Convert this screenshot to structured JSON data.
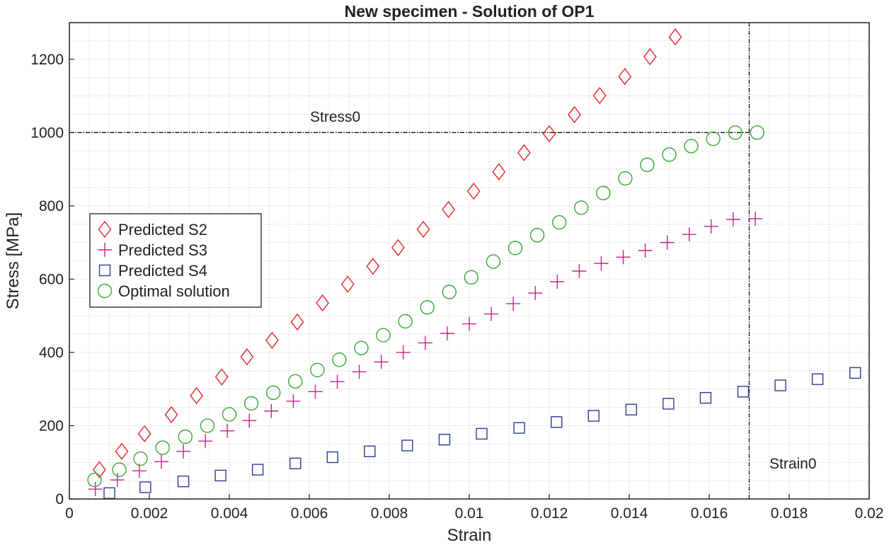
{
  "chart_data": {
    "type": "scatter",
    "title": "New specimen - Solution of OP1",
    "xlabel": "Strain",
    "ylabel": "Stress [MPa]",
    "xlim": [
      0,
      0.02
    ],
    "ylim": [
      0,
      1300
    ],
    "xticks": [
      0,
      0.002,
      0.004,
      0.006,
      0.008,
      0.01,
      0.012,
      0.014,
      0.016,
      0.018,
      0.02
    ],
    "xtick_labels": [
      "0",
      "0.002",
      "0.004",
      "0.006",
      "0.008",
      "0.01",
      "0.012",
      "0.014",
      "0.016",
      "0.018",
      "0.02"
    ],
    "yticks": [
      0,
      200,
      400,
      600,
      800,
      1000,
      1200
    ],
    "ytick_labels": [
      "0",
      "200",
      "400",
      "600",
      "800",
      "1000",
      "1200"
    ],
    "grid": true,
    "legend_position": "middle-left",
    "series": [
      {
        "name": "Predicted S2",
        "marker": "diamond",
        "color": "#e3262b",
        "x": [
          0.00075,
          0.00131,
          0.00188,
          0.00255,
          0.00318,
          0.00381,
          0.00444,
          0.00507,
          0.0057,
          0.00633,
          0.00696,
          0.00759,
          0.00822,
          0.00885,
          0.00948,
          0.01011,
          0.01074,
          0.01137,
          0.012,
          0.01263,
          0.01326,
          0.01389,
          0.01452,
          0.01515
        ],
        "y": [
          80,
          130,
          178,
          230,
          282,
          333,
          388,
          433,
          483,
          535,
          586,
          635,
          686,
          736,
          790,
          840,
          893,
          945,
          997,
          1049,
          1101,
          1153,
          1207,
          1261
        ]
      },
      {
        "name": "Predicted S3",
        "marker": "plus",
        "color": "#c1268c",
        "x": [
          0.00065,
          0.0012,
          0.00175,
          0.0023,
          0.00285,
          0.0034,
          0.00395,
          0.0045,
          0.00505,
          0.0056,
          0.00615,
          0.0067,
          0.00725,
          0.0078,
          0.00835,
          0.0089,
          0.00945,
          0.01,
          0.01055,
          0.0111,
          0.01165,
          0.0122,
          0.01275,
          0.0133,
          0.01385,
          0.0144,
          0.01495,
          0.0155,
          0.01605,
          0.0166,
          0.01715
        ],
        "y": [
          27,
          52,
          77,
          102,
          130,
          158,
          186,
          214,
          240,
          267,
          293,
          320,
          347,
          374,
          400,
          426,
          452,
          478,
          505,
          533,
          562,
          593,
          622,
          643,
          660,
          678,
          700,
          722,
          744,
          763,
          765
        ]
      },
      {
        "name": "Predicted S4",
        "marker": "square",
        "color": "#2e3c95",
        "x": [
          0.001,
          0.0019,
          0.00285,
          0.00378,
          0.00471,
          0.00565,
          0.00658,
          0.00751,
          0.00845,
          0.00938,
          0.01031,
          0.01125,
          0.01218,
          0.01311,
          0.01405,
          0.01498,
          0.01591,
          0.01685,
          0.01778,
          0.01871,
          0.01965
        ],
        "y": [
          16,
          32,
          48,
          64,
          80,
          97,
          114,
          130,
          146,
          162,
          178,
          194,
          210,
          227,
          244,
          260,
          276,
          293,
          310,
          327,
          344
        ]
      },
      {
        "name": "Optimal solution",
        "marker": "circle",
        "color": "#3aa935",
        "x": [
          0.00063,
          0.00125,
          0.00178,
          0.00233,
          0.0029,
          0.00345,
          0.004,
          0.00455,
          0.0051,
          0.00565,
          0.0062,
          0.00675,
          0.0073,
          0.00785,
          0.0084,
          0.00895,
          0.0095,
          0.01005,
          0.0106,
          0.01115,
          0.0117,
          0.01225,
          0.0128,
          0.01335,
          0.0139,
          0.01445,
          0.015,
          0.01555,
          0.0161,
          0.01665,
          0.0172
        ],
        "y": [
          52,
          80,
          110,
          140,
          170,
          200,
          231,
          261,
          290,
          321,
          352,
          380,
          412,
          447,
          485,
          523,
          565,
          605,
          648,
          685,
          720,
          755,
          795,
          835,
          875,
          912,
          940,
          963,
          983,
          1000,
          1000
        ]
      }
    ],
    "reference_lines": [
      {
        "orientation": "horizontal",
        "value": 1000,
        "x_end": 0.017,
        "label": "Stress0"
      },
      {
        "orientation": "vertical",
        "value": 0.017,
        "y_end": 1300,
        "label": "Strain0"
      }
    ]
  }
}
